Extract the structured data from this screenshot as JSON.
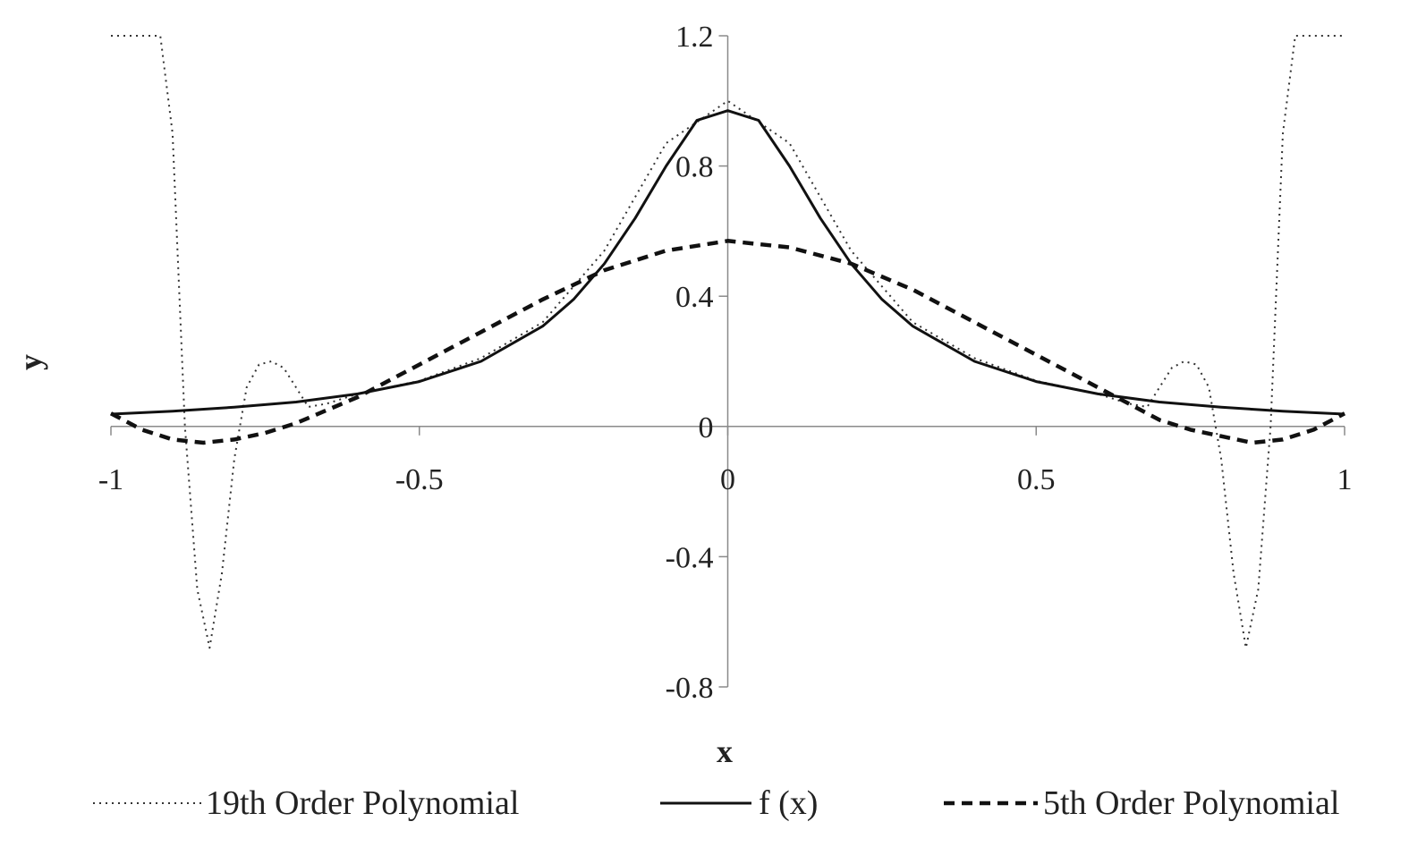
{
  "chart_data": {
    "type": "line",
    "title": "",
    "xlabel": "x",
    "ylabel": "y",
    "xlim": [
      -1,
      1
    ],
    "ylim": [
      -0.8,
      1.2
    ],
    "xticks": [
      -1,
      -0.5,
      0,
      0.5,
      1
    ],
    "xtick_labels": [
      "-1",
      "-0.5",
      "0",
      "0.5",
      "1"
    ],
    "yticks": [
      -0.8,
      -0.4,
      0,
      0.4,
      0.8,
      1.2
    ],
    "ytick_labels": [
      "-0.8",
      "-0.4",
      "0",
      "0.4",
      "0.8",
      "1.2"
    ],
    "grid": false,
    "legend_position": "bottom",
    "series": [
      {
        "name": "19th Order Polynomial",
        "style": "dotted",
        "color": "#333333",
        "x": [
          -1.0,
          -0.98,
          -0.95,
          -0.92,
          -0.9,
          -0.88,
          -0.86,
          -0.84,
          -0.82,
          -0.8,
          -0.78,
          -0.76,
          -0.74,
          -0.72,
          -0.7,
          -0.68,
          -0.65,
          -0.6,
          -0.5,
          -0.4,
          -0.3,
          -0.2,
          -0.1,
          0.0,
          0.1,
          0.2,
          0.3,
          0.4,
          0.5,
          0.6,
          0.65,
          0.68,
          0.7,
          0.72,
          0.74,
          0.76,
          0.78,
          0.8,
          0.82,
          0.84,
          0.86,
          0.88,
          0.9,
          0.92,
          0.95,
          0.98,
          1.0
        ],
        "y": [
          1.2,
          1.2,
          1.2,
          1.2,
          0.9,
          0.0,
          -0.5,
          -0.68,
          -0.45,
          -0.1,
          0.12,
          0.19,
          0.2,
          0.18,
          0.12,
          0.06,
          0.07,
          0.1,
          0.14,
          0.21,
          0.32,
          0.54,
          0.87,
          1.0,
          0.87,
          0.54,
          0.32,
          0.21,
          0.14,
          0.1,
          0.07,
          0.06,
          0.12,
          0.18,
          0.2,
          0.19,
          0.12,
          -0.1,
          -0.45,
          -0.68,
          -0.5,
          0.0,
          0.9,
          1.2,
          1.2,
          1.2,
          1.2
        ]
      },
      {
        "name": "f (x)",
        "style": "solid",
        "color": "#111111",
        "x": [
          -1.0,
          -0.9,
          -0.8,
          -0.7,
          -0.6,
          -0.5,
          -0.4,
          -0.3,
          -0.25,
          -0.2,
          -0.15,
          -0.1,
          -0.05,
          0.0,
          0.05,
          0.1,
          0.15,
          0.2,
          0.25,
          0.3,
          0.4,
          0.5,
          0.6,
          0.7,
          0.8,
          0.9,
          1.0
        ],
        "y": [
          0.038,
          0.047,
          0.059,
          0.075,
          0.1,
          0.138,
          0.2,
          0.308,
          0.39,
          0.5,
          0.64,
          0.8,
          0.94,
          0.97,
          0.94,
          0.8,
          0.64,
          0.5,
          0.39,
          0.308,
          0.2,
          0.138,
          0.1,
          0.075,
          0.059,
          0.047,
          0.038
        ]
      },
      {
        "name": "5th Order Polynomial",
        "style": "dashed",
        "color": "#111111",
        "x": [
          -1.0,
          -0.95,
          -0.9,
          -0.85,
          -0.8,
          -0.75,
          -0.7,
          -0.65,
          -0.6,
          -0.5,
          -0.4,
          -0.3,
          -0.2,
          -0.1,
          0.0,
          0.1,
          0.2,
          0.3,
          0.4,
          0.5,
          0.6,
          0.65,
          0.7,
          0.75,
          0.8,
          0.85,
          0.9,
          0.95,
          1.0
        ],
        "y": [
          0.04,
          -0.01,
          -0.04,
          -0.05,
          -0.04,
          -0.02,
          0.01,
          0.05,
          0.09,
          0.19,
          0.29,
          0.39,
          0.48,
          0.54,
          0.57,
          0.55,
          0.5,
          0.42,
          0.32,
          0.22,
          0.12,
          0.07,
          0.02,
          -0.01,
          -0.03,
          -0.05,
          -0.04,
          -0.01,
          0.04
        ]
      }
    ]
  }
}
